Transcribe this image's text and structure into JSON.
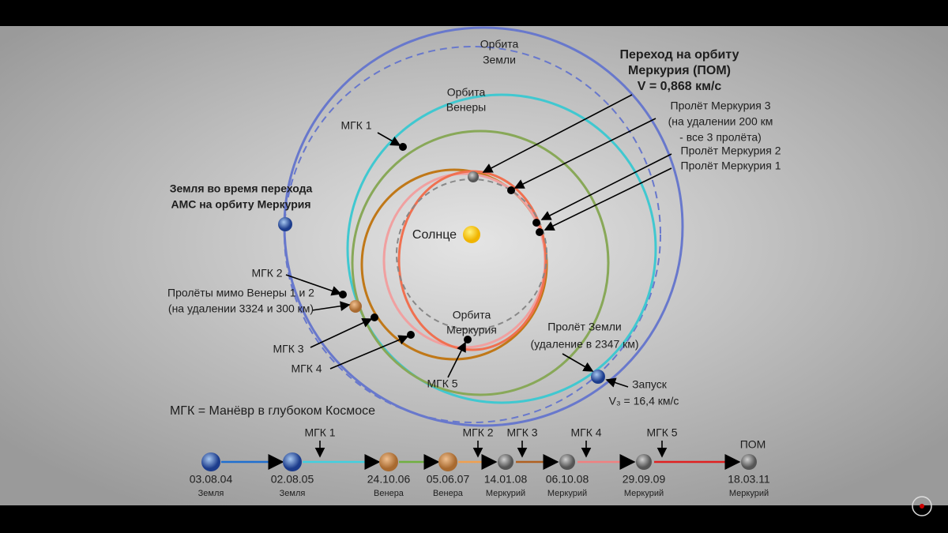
{
  "orbit_labels": {
    "earth": [
      "Орбита",
      "Земли"
    ],
    "venus": [
      "Орбита",
      "Венеры"
    ],
    "mercury": [
      "Орбита",
      "Меркурия"
    ]
  },
  "sun": "Солнце",
  "callouts": {
    "pom": [
      "Переход на орбиту",
      "Меркурия (ПОМ)",
      "V = 0,868 км/с"
    ],
    "mercury_flyby_3": [
      "Пролёт Меркурия 3",
      "(на удалении 200 км",
      "- все 3 пролёта)"
    ],
    "mercury_flyby_2": "Пролёт Меркурия 2",
    "mercury_flyby_1": "Пролёт Меркурия 1",
    "mgk1": "МГК 1",
    "earth_at_transfer": [
      "Земля во время перехода",
      "АМС на орбиту Меркурия"
    ],
    "mgk2": "МГК 2",
    "venus_flybys": [
      "Пролёты мимо Венеры 1 и 2",
      "(на удалении 3324 и 300 км)"
    ],
    "mgk3": "МГК 3",
    "mgk4": "МГК 4",
    "mgk5": "МГК 5",
    "earth_flyby": [
      "Пролёт Земли",
      "(удаление в 2347 км)"
    ],
    "launch": [
      "Запуск",
      "V₃ = 16,4 км/с"
    ]
  },
  "legend": "МГК = Манёвр в глубоком Космосе",
  "timeline": {
    "events": [
      {
        "date": "03.08.04",
        "body": "Земля"
      },
      {
        "date": "02.08.05",
        "body": "Земля"
      },
      {
        "date": "24.10.06",
        "body": "Венера"
      },
      {
        "date": "05.06.07",
        "body": "Венера"
      },
      {
        "date": "14.01.08",
        "body": "Меркурий"
      },
      {
        "date": "06.10.08",
        "body": "Меркурий"
      },
      {
        "date": "29.09.09",
        "body": "Меркурий"
      },
      {
        "date": "18.03.11",
        "body": "Меркурий"
      }
    ],
    "markers": [
      "МГК 1",
      "МГК 2",
      "МГК 3",
      "МГК 4",
      "МГК 5",
      "ПОМ"
    ]
  }
}
